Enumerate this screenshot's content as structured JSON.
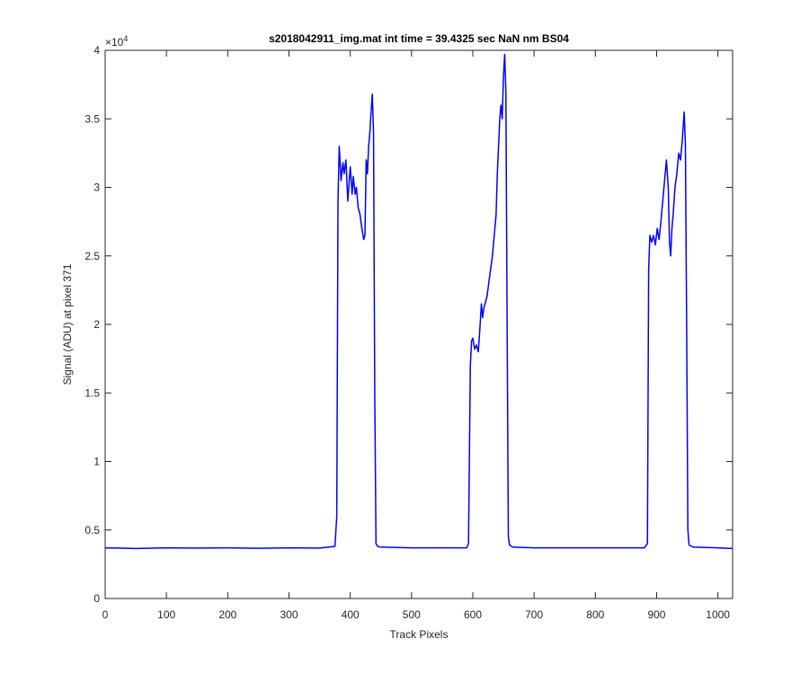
{
  "chart_data": {
    "type": "line",
    "title": "s2018042911_img.mat int time = 39.4325 sec  NaN nm BS04",
    "x_label": "Track Pixels",
    "y_label": "Signal (ADU) at pixel 371",
    "y_multiplier_base": "×10",
    "y_multiplier_exponent": "4",
    "xlim": [
      0,
      1024
    ],
    "ylim": [
      0,
      4
    ],
    "xticks": [
      0,
      100,
      200,
      300,
      400,
      500,
      600,
      700,
      800,
      900,
      1000
    ],
    "yticks": [
      0,
      0.5,
      1,
      1.5,
      2,
      2.5,
      3,
      3.5,
      4
    ],
    "grid": false,
    "x": [
      0,
      50,
      100,
      150,
      200,
      250,
      300,
      350,
      375,
      378,
      380,
      382,
      385,
      388,
      390,
      393,
      396,
      400,
      403,
      405,
      408,
      410,
      413,
      416,
      419,
      422,
      424,
      426,
      428,
      430,
      432,
      434,
      436,
      438,
      440,
      442,
      445,
      450,
      500,
      550,
      590,
      593,
      596,
      598,
      600,
      603,
      606,
      609,
      612,
      614,
      616,
      618,
      620,
      623,
      626,
      629,
      632,
      635,
      638,
      640,
      642,
      644,
      646,
      648,
      650,
      652,
      654,
      656,
      658,
      660,
      665,
      700,
      750,
      800,
      850,
      880,
      885,
      887,
      889,
      892,
      895,
      898,
      901,
      904,
      907,
      910,
      913,
      916,
      919,
      921,
      923,
      925,
      927,
      930,
      933,
      936,
      939,
      942,
      945,
      947,
      949,
      951,
      953,
      960,
      1000,
      1024
    ],
    "series": [
      {
        "color": "#0000ff",
        "values": [
          0.37,
          0.365,
          0.37,
          0.368,
          0.37,
          0.366,
          0.37,
          0.368,
          0.38,
          0.6,
          2.9,
          3.3,
          3.05,
          3.18,
          3.1,
          3.2,
          2.9,
          3.15,
          2.95,
          3.08,
          2.95,
          3.0,
          2.85,
          2.8,
          2.7,
          2.62,
          2.65,
          3.2,
          3.1,
          3.3,
          3.4,
          3.55,
          3.68,
          3.4,
          1.5,
          0.4,
          0.38,
          0.375,
          0.37,
          0.37,
          0.37,
          0.4,
          1.7,
          1.88,
          1.9,
          1.82,
          1.85,
          1.8,
          2.0,
          2.15,
          2.05,
          2.12,
          2.15,
          2.2,
          2.3,
          2.4,
          2.5,
          2.65,
          2.8,
          3.1,
          3.3,
          3.5,
          3.6,
          3.5,
          3.8,
          3.97,
          3.7,
          2.0,
          0.45,
          0.39,
          0.375,
          0.37,
          0.37,
          0.37,
          0.37,
          0.37,
          0.4,
          2.4,
          2.65,
          2.6,
          2.65,
          2.58,
          2.7,
          2.62,
          2.75,
          2.9,
          3.05,
          3.2,
          3.0,
          2.6,
          2.5,
          2.7,
          2.8,
          3.0,
          3.1,
          3.25,
          3.2,
          3.35,
          3.55,
          3.3,
          2.0,
          0.5,
          0.39,
          0.375,
          0.37,
          0.365
        ]
      }
    ]
  }
}
